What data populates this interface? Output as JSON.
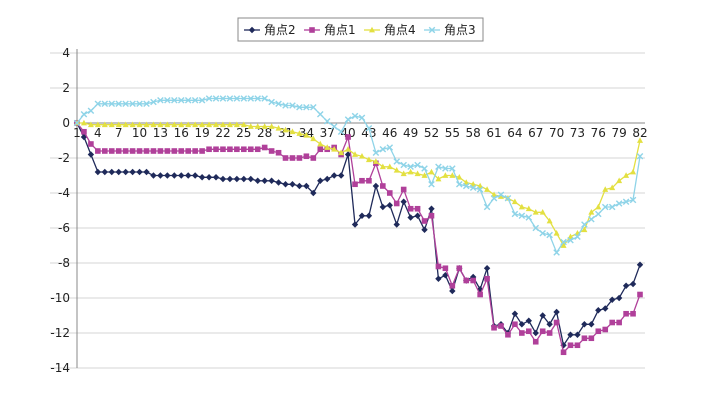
{
  "chart_data": {
    "type": "line",
    "title": "",
    "xlabel": "",
    "ylabel": "",
    "ylim": [
      -14,
      4
    ],
    "yticks": [
      4,
      2,
      0,
      -2,
      -4,
      -6,
      -8,
      -10,
      -12,
      -14
    ],
    "x": [
      1,
      2,
      3,
      4,
      5,
      6,
      7,
      8,
      9,
      10,
      11,
      12,
      13,
      14,
      15,
      16,
      17,
      18,
      19,
      20,
      21,
      22,
      23,
      24,
      25,
      26,
      27,
      28,
      29,
      30,
      31,
      32,
      33,
      34,
      35,
      36,
      37,
      38,
      39,
      40,
      41,
      42,
      43,
      44,
      45,
      46,
      47,
      48,
      49,
      50,
      51,
      52,
      53,
      54,
      55,
      56,
      57,
      58,
      59,
      60,
      61,
      62,
      63,
      64,
      65,
      66,
      67,
      68,
      69,
      70,
      71,
      72,
      73,
      74,
      75,
      76,
      77,
      78,
      79,
      80,
      81,
      82
    ],
    "xtick_labels": [
      "1",
      "4",
      "7",
      "10",
      "13",
      "16",
      "19",
      "22",
      "25",
      "28",
      "31",
      "34",
      "37",
      "40",
      "43",
      "46",
      "49",
      "52",
      "55",
      "58",
      "61",
      "64",
      "67",
      "70",
      "73",
      "76",
      "79",
      "82"
    ],
    "grid": "horizontal",
    "legend_position": "top",
    "series": [
      {
        "name": "角点2",
        "color": "#1f2a5a",
        "marker": "diamond",
        "values": [
          0,
          -0.8,
          -1.8,
          -2.8,
          -2.8,
          -2.8,
          -2.8,
          -2.8,
          -2.8,
          -2.8,
          -2.8,
          -3.0,
          -3.0,
          -3.0,
          -3.0,
          -3.0,
          -3.0,
          -3.0,
          -3.1,
          -3.1,
          -3.1,
          -3.2,
          -3.2,
          -3.2,
          -3.2,
          -3.2,
          -3.3,
          -3.3,
          -3.3,
          -3.4,
          -3.5,
          -3.5,
          -3.6,
          -3.6,
          -4.0,
          -3.3,
          -3.2,
          -3.0,
          -3.0,
          -1.8,
          -5.8,
          -5.3,
          -5.3,
          -3.6,
          -4.8,
          -4.7,
          -5.8,
          -4.5,
          -5.4,
          -5.3,
          -6.1,
          -4.9,
          -8.9,
          -8.7,
          -9.6,
          -8.3,
          -9.0,
          -8.8,
          -9.5,
          -8.3,
          -11.6,
          -11.5,
          -12.0,
          -10.9,
          -11.5,
          -11.3,
          -12.0,
          -11.0,
          -11.5,
          -10.8,
          -12.7,
          -12.1,
          -12.1,
          -11.5,
          -11.5,
          -10.7,
          -10.6,
          -10.1,
          -10.0,
          -9.3,
          -9.2,
          -8.1
        ]
      },
      {
        "name": "角点1",
        "color": "#b0409a",
        "marker": "square",
        "values": [
          0,
          -0.5,
          -1.2,
          -1.6,
          -1.6,
          -1.6,
          -1.6,
          -1.6,
          -1.6,
          -1.6,
          -1.6,
          -1.6,
          -1.6,
          -1.6,
          -1.6,
          -1.6,
          -1.6,
          -1.6,
          -1.6,
          -1.5,
          -1.5,
          -1.5,
          -1.5,
          -1.5,
          -1.5,
          -1.5,
          -1.5,
          -1.4,
          -1.6,
          -1.7,
          -2.0,
          -2.0,
          -2.0,
          -1.9,
          -2.0,
          -1.5,
          -1.5,
          -1.4,
          -1.8,
          -0.8,
          -3.5,
          -3.3,
          -3.3,
          -2.3,
          -3.6,
          -4.0,
          -4.6,
          -3.8,
          -4.9,
          -4.9,
          -5.6,
          -5.3,
          -8.2,
          -8.3,
          -9.3,
          -8.3,
          -9.0,
          -9.0,
          -9.8,
          -8.9,
          -11.7,
          -11.6,
          -12.1,
          -11.5,
          -12.0,
          -11.9,
          -12.5,
          -11.9,
          -12.0,
          -11.4,
          -13.1,
          -12.7,
          -12.7,
          -12.3,
          -12.3,
          -11.9,
          -11.8,
          -11.4,
          -11.4,
          -10.9,
          -10.9,
          -9.8
        ]
      },
      {
        "name": "角点4",
        "color": "#e3e041",
        "marker": "triangle",
        "values": [
          0,
          0,
          -0.1,
          -0.1,
          -0.1,
          -0.1,
          -0.1,
          -0.1,
          -0.1,
          -0.1,
          -0.1,
          -0.1,
          -0.1,
          -0.1,
          -0.1,
          -0.1,
          -0.1,
          -0.1,
          -0.1,
          -0.1,
          -0.1,
          -0.1,
          -0.1,
          -0.1,
          -0.1,
          -0.2,
          -0.2,
          -0.2,
          -0.2,
          -0.3,
          -0.4,
          -0.5,
          -0.6,
          -0.7,
          -0.9,
          -1.2,
          -1.4,
          -1.5,
          -1.7,
          -1.5,
          -1.8,
          -1.9,
          -2.1,
          -2.2,
          -2.5,
          -2.5,
          -2.7,
          -2.9,
          -2.8,
          -2.9,
          -3.0,
          -2.8,
          -3.2,
          -3.0,
          -3.0,
          -3.1,
          -3.4,
          -3.5,
          -3.6,
          -3.8,
          -4.1,
          -4.2,
          -4.3,
          -4.5,
          -4.8,
          -4.9,
          -5.1,
          -5.1,
          -5.6,
          -6.3,
          -7.0,
          -6.5,
          -6.3,
          -6.1,
          -5.1,
          -4.8,
          -3.8,
          -3.7,
          -3.3,
          -3.0,
          -2.8,
          -1.0
        ]
      },
      {
        "name": "角点3",
        "color": "#8fd4e8",
        "marker": "x",
        "values": [
          0,
          0.5,
          0.7,
          1.1,
          1.1,
          1.1,
          1.1,
          1.1,
          1.1,
          1.1,
          1.1,
          1.2,
          1.3,
          1.3,
          1.3,
          1.3,
          1.3,
          1.3,
          1.3,
          1.4,
          1.4,
          1.4,
          1.4,
          1.4,
          1.4,
          1.4,
          1.4,
          1.4,
          1.2,
          1.1,
          1.0,
          1.0,
          0.9,
          0.9,
          0.9,
          0.5,
          0.1,
          -0.2,
          -0.5,
          0.2,
          0.4,
          0.3,
          -0.3,
          -1.7,
          -1.5,
          -1.4,
          -2.2,
          -2.4,
          -2.5,
          -2.4,
          -2.6,
          -3.5,
          -2.5,
          -2.6,
          -2.6,
          -3.5,
          -3.6,
          -3.7,
          -3.8,
          -4.8,
          -4.3,
          -4.1,
          -4.3,
          -5.2,
          -5.3,
          -5.4,
          -6.0,
          -6.3,
          -6.4,
          -7.4,
          -6.8,
          -6.7,
          -6.5,
          -5.8,
          -5.5,
          -5.2,
          -4.8,
          -4.8,
          -4.6,
          -4.5,
          -4.4,
          -1.9
        ]
      }
    ]
  }
}
